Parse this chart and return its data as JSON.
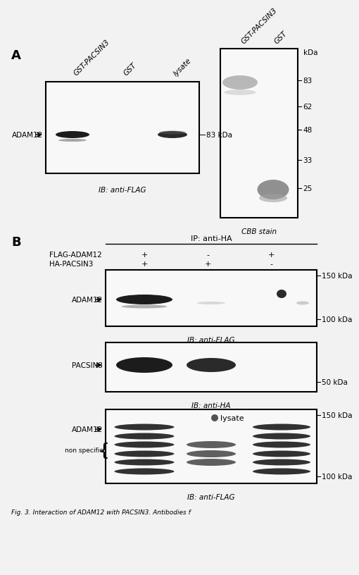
{
  "fig_bg": "#f2f2f2",
  "blot_bg_white": "#f8f8f8",
  "blot_bg_gray": "#e0e0e0",
  "band_black": "#1c1c1c",
  "band_dark": "#2a2a2a",
  "band_gray": "#909090",
  "band_lightgray": "#b8b8b8",
  "panel_A_label": "A",
  "panel_B_label": "B",
  "left_blot_cols": [
    "GST-PACSIN3",
    "GST",
    "lysate"
  ],
  "left_blot_ib": "IB: anti-FLAG",
  "left_blot_adam12": "ADAM12",
  "left_blot_83kda": "83 kDa",
  "cbb_cols": [
    "GST-PACSIN3",
    "GST"
  ],
  "cbb_kda_label": "kDa",
  "cbb_kda_vals": [
    "83",
    "62",
    "48",
    "33",
    "25"
  ],
  "cbb_label": "CBB stain",
  "ip_label": "IP: anti-HA",
  "flag_adam12_label": "FLAG-ADAM12",
  "ha_pacsin3_label": "HA-PACSIN3",
  "pm_row1": [
    "+",
    "-",
    "+"
  ],
  "pm_row2": [
    "+",
    "+",
    "-"
  ],
  "b1_adam12": "ADAM12",
  "b1_ib": "IB: anti-FLAG",
  "b1_150kda": "150 kDa",
  "b1_100kda": "100 kDa",
  "b2_pacsin3": "PACSIN3",
  "b2_ib": "IB: anti-HA",
  "b2_50kda": "50 kDa",
  "b3_title": "lysate",
  "b3_adam12": "ADAM12",
  "b3_nonspec": "non specific",
  "b3_ib": "IB: anti-FLAG",
  "b3_150kda": "150 kDa",
  "b3_100kda": "100 kDa",
  "caption": "Fig. 3. Interaction of ADAM12 with PACSIN3. Antibodies f"
}
